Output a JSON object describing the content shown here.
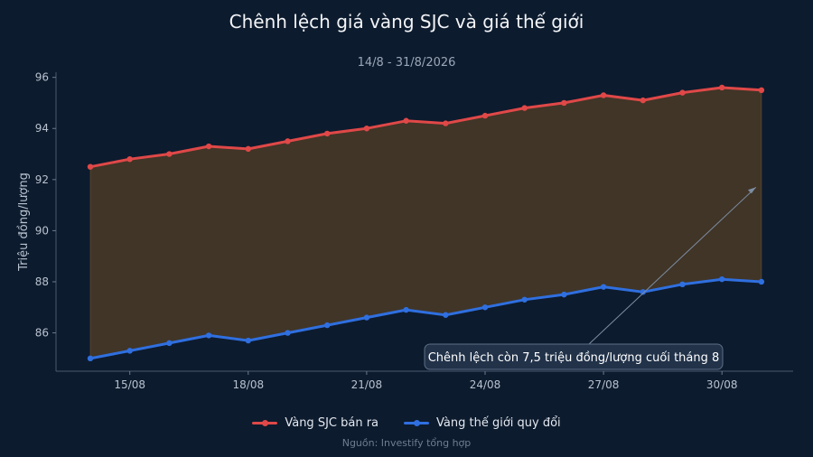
{
  "chart_data": {
    "type": "line",
    "title": "Chênh lệch giá vàng SJC và giá thế giới",
    "subtitle": "14/8 - 31/8/2026",
    "xlabel": "",
    "ylabel": "Triệu đồng/lượng",
    "x": [
      "14/08",
      "15/08",
      "16/08",
      "17/08",
      "18/08",
      "19/08",
      "20/08",
      "21/08",
      "22/08",
      "23/08",
      "24/08",
      "25/08",
      "26/08",
      "27/08",
      "28/08",
      "29/08",
      "30/08",
      "31/08"
    ],
    "xticks": [
      "15/08",
      "18/08",
      "21/08",
      "24/08",
      "27/08",
      "30/08"
    ],
    "yticks": [
      86,
      88,
      90,
      92,
      94,
      96
    ],
    "ylim": [
      84.5,
      96.2
    ],
    "series": [
      {
        "name": "Vàng SJC bán ra",
        "color": "#e04848",
        "values": [
          92.5,
          92.8,
          93.0,
          93.3,
          93.2,
          93.5,
          93.8,
          94.0,
          94.3,
          94.2,
          94.5,
          94.8,
          95.0,
          95.3,
          95.1,
          95.4,
          95.6,
          95.5
        ]
      },
      {
        "name": "Vàng thế giới quy đổi",
        "color": "#2f6fe0",
        "values": [
          85.0,
          85.3,
          85.6,
          85.9,
          85.7,
          86.0,
          86.3,
          86.6,
          86.9,
          86.7,
          87.0,
          87.3,
          87.5,
          87.8,
          87.6,
          87.9,
          88.1,
          88.0
        ]
      }
    ],
    "fill_between": {
      "color": "#6b4a22"
    },
    "annotation": {
      "text": "Chênh lệch còn 7,5 triệu đồng/lượng cuối tháng 8",
      "target": {
        "x": "31/08",
        "y": 91.7
      }
    },
    "grid": false,
    "legend": "bottom-center"
  },
  "footer": {
    "source": "Nguồn: Investify tổng hợp"
  }
}
